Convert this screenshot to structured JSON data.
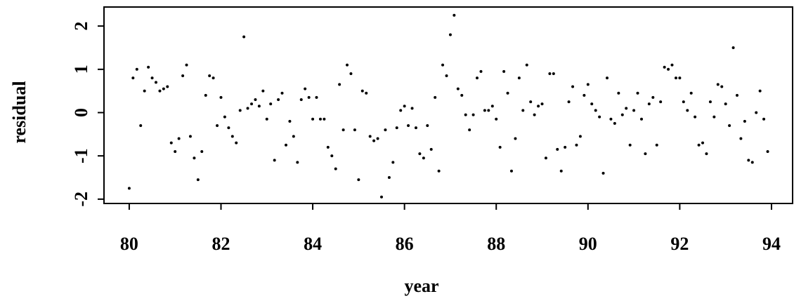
{
  "chart_data": {
    "type": "scatter",
    "x_label": "year",
    "y_label": "residual",
    "x": [
      80,
      80.083,
      80.167,
      80.25,
      80.333,
      80.417,
      80.5,
      80.583,
      80.667,
      80.75,
      80.833,
      80.917,
      81,
      81.083,
      81.167,
      81.25,
      81.333,
      81.417,
      81.5,
      81.583,
      81.667,
      81.75,
      81.833,
      81.917,
      82,
      82.083,
      82.167,
      82.25,
      82.333,
      82.417,
      82.5,
      82.583,
      82.667,
      82.75,
      82.833,
      82.917,
      83,
      83.083,
      83.167,
      83.25,
      83.333,
      83.417,
      83.5,
      83.583,
      83.667,
      83.75,
      83.833,
      83.917,
      84,
      84.083,
      84.167,
      84.25,
      84.333,
      84.417,
      84.5,
      84.583,
      84.667,
      84.75,
      84.833,
      84.917,
      85,
      85.083,
      85.167,
      85.25,
      85.333,
      85.417,
      85.5,
      85.583,
      85.667,
      85.75,
      85.833,
      85.917,
      86,
      86.083,
      86.167,
      86.25,
      86.333,
      86.417,
      86.5,
      86.583,
      86.667,
      86.75,
      86.833,
      86.917,
      87,
      87.083,
      87.167,
      87.25,
      87.333,
      87.417,
      87.5,
      87.583,
      87.667,
      87.75,
      87.833,
      87.917,
      88,
      88.083,
      88.167,
      88.25,
      88.333,
      88.417,
      88.5,
      88.583,
      88.667,
      88.75,
      88.833,
      88.917,
      89,
      89.083,
      89.167,
      89.25,
      89.333,
      89.417,
      89.5,
      89.583,
      89.667,
      89.75,
      89.833,
      89.917,
      90,
      90.083,
      90.167,
      90.25,
      90.333,
      90.417,
      90.5,
      90.583,
      90.667,
      90.75,
      90.833,
      90.917,
      91,
      91.083,
      91.167,
      91.25,
      91.333,
      91.417,
      91.5,
      91.583,
      91.667,
      91.75,
      91.833,
      91.917,
      92,
      92.083,
      92.167,
      92.25,
      92.333,
      92.417,
      92.5,
      92.583,
      92.667,
      92.75,
      92.833,
      92.917,
      93,
      93.083,
      93.167,
      93.25,
      93.333,
      93.417,
      93.5,
      93.583,
      93.667,
      93.75,
      93.833,
      93.917
    ],
    "values": [
      -1.75,
      0.8,
      1.0,
      -0.3,
      0.5,
      1.05,
      0.8,
      0.7,
      0.5,
      0.55,
      0.6,
      -0.7,
      -0.9,
      -0.6,
      0.85,
      1.1,
      -0.55,
      -1.05,
      -1.55,
      -0.9,
      0.4,
      0.85,
      0.8,
      -0.3,
      0.35,
      -0.1,
      -0.35,
      -0.55,
      -0.7,
      0.05,
      1.75,
      0.1,
      0.2,
      0.3,
      0.15,
      0.5,
      -0.15,
      0.2,
      -1.1,
      0.3,
      0.45,
      -0.75,
      -0.2,
      -0.55,
      -1.15,
      0.3,
      0.55,
      0.35,
      -0.15,
      0.35,
      -0.15,
      -0.15,
      -0.8,
      -1.0,
      -1.3,
      0.65,
      -0.4,
      1.1,
      0.9,
      -0.4,
      -1.55,
      0.5,
      0.45,
      -0.55,
      -0.65,
      -0.6,
      -1.95,
      -0.4,
      -1.5,
      -1.15,
      -0.35,
      0.05,
      0.15,
      -0.3,
      0.1,
      -0.35,
      -0.95,
      -1.05,
      -0.3,
      -0.85,
      0.35,
      -1.35,
      1.1,
      0.85,
      1.8,
      2.25,
      0.55,
      0.4,
      -0.05,
      -0.4,
      -0.05,
      0.8,
      0.95,
      0.05,
      0.05,
      0.15,
      -0.15,
      -0.8,
      0.95,
      0.45,
      -1.35,
      -0.6,
      0.8,
      0.05,
      1.1,
      0.25,
      -0.05,
      0.15,
      0.2,
      -1.05,
      0.9,
      0.9,
      -0.85,
      -1.35,
      -0.8,
      0.25,
      0.6,
      -0.75,
      -0.55,
      0.4,
      0.65,
      0.2,
      0.05,
      -0.1,
      -1.4,
      0.8,
      -0.15,
      -0.25,
      0.45,
      -0.05,
      0.1,
      -0.75,
      0.05,
      0.45,
      -0.15,
      -0.95,
      0.2,
      0.35,
      -0.75,
      0.25,
      1.05,
      1.0,
      1.1,
      0.8,
      0.8,
      0.25,
      0.05,
      0.45,
      -0.1,
      -0.75,
      -0.7,
      -0.95,
      0.25,
      -0.1,
      0.65,
      0.6,
      0.2,
      -0.3,
      1.5,
      0.4,
      -0.6,
      -0.2,
      -1.1,
      -1.15,
      0.0,
      0.5,
      -0.15,
      -0.9
    ],
    "color": "#000000",
    "xlim": [
      79.45,
      94.46
    ],
    "ylim": [
      -2.1,
      2.44
    ],
    "xticks": [
      80,
      82,
      84,
      86,
      88,
      90,
      92,
      94
    ],
    "yticks": [
      -2,
      -1,
      0,
      1,
      2
    ]
  }
}
